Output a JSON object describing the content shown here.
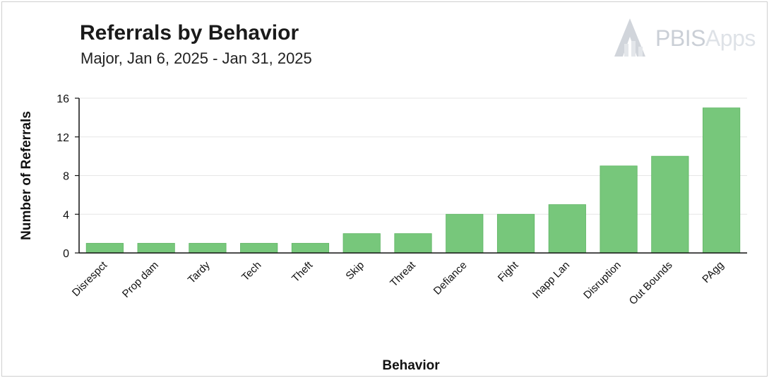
{
  "header": {
    "title": "Referrals by Behavior",
    "subtitle": "Major, Jan 6, 2025 - Jan 31, 2025"
  },
  "logo": {
    "brand": "PBIS",
    "suffix": "Apps",
    "icon": "pbis-logo-icon"
  },
  "colors": {
    "bar": "#77c77b",
    "bar_stroke": "#5fb564",
    "grid": "#e6e6e6",
    "axis": "#111111"
  },
  "chart_data": {
    "type": "bar",
    "title": "Referrals by Behavior",
    "subtitle": "Major, Jan 6, 2025 - Jan 31, 2025",
    "xlabel": "Behavior",
    "ylabel": "Number of Referrals",
    "categories": [
      "Disrespct",
      "Prop dam",
      "Tardy",
      "Tech",
      "Theft",
      "Skip",
      "Threat",
      "Defiance",
      "Fight",
      "Inapp Lan",
      "Disruption",
      "Out Bounds",
      "PAgg"
    ],
    "values": [
      1,
      1,
      1,
      1,
      1,
      2,
      2,
      4,
      4,
      5,
      9,
      10,
      15
    ],
    "ylim": [
      0,
      16
    ],
    "yticks": [
      0,
      4,
      8,
      12,
      16
    ],
    "grid": true,
    "legend": "none"
  }
}
